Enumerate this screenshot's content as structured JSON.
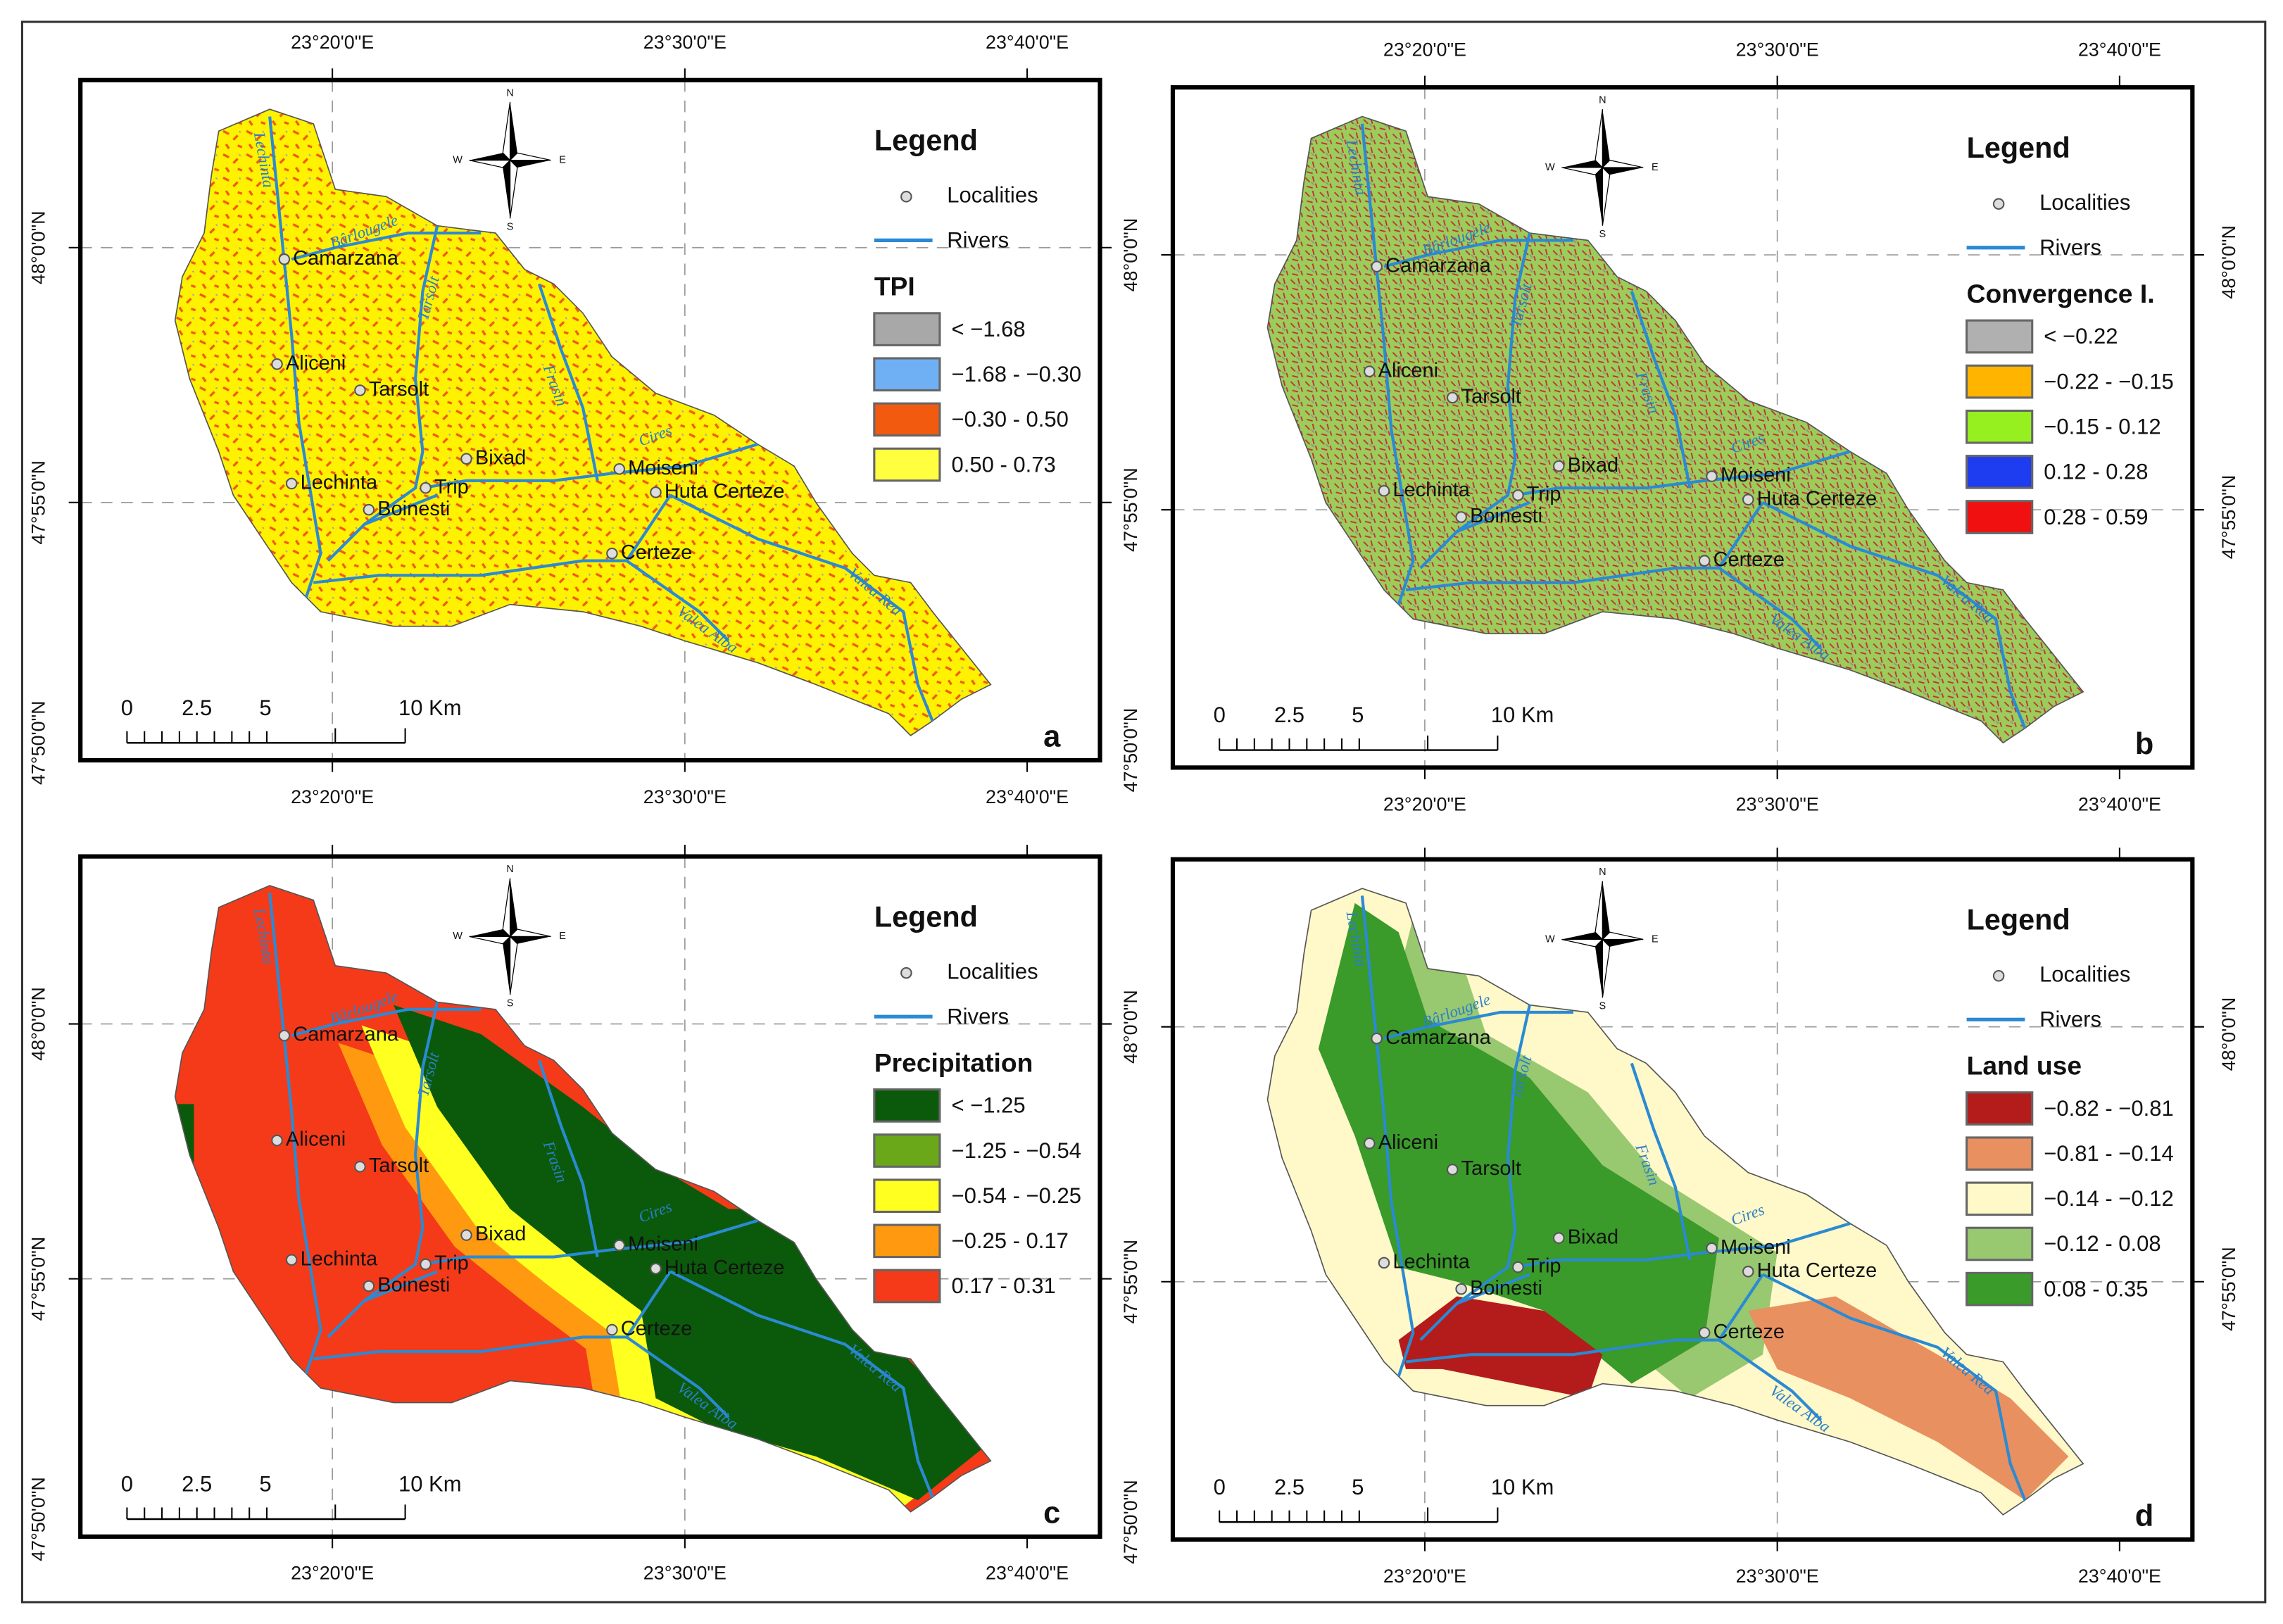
{
  "legend_title": "Legend",
  "localities_label": "Localities",
  "rivers_label": "Rivers",
  "compass": {
    "n": "N",
    "e": "E",
    "s": "S",
    "w": "W"
  },
  "scale": [
    "0",
    "2.5",
    "5",
    "10 Km"
  ],
  "localities": [
    "Camarzana",
    "Aliceni",
    "Tarsolt",
    "Bixad",
    "Lechinta",
    "Trip",
    "Boinesti",
    "Moiseni",
    "Huta Certeze",
    "Certeze"
  ],
  "rivers": [
    "Lechinta",
    "Bârlougele",
    "Tarsolt",
    "Frasin",
    "Cires",
    "Valea Rea",
    "Valea Alba"
  ],
  "panels": [
    {
      "letter": "a",
      "layer": "TPI",
      "fill": "tpi",
      "classes": [
        {
          "label": "< −1.68",
          "color": "#a8a8a8"
        },
        {
          "label": "−1.68 - −0.30",
          "color": "#6fb0f5"
        },
        {
          "label": "−0.30 - 0.50",
          "color": "#f25a10"
        },
        {
          "label": "0.50 - 0.73",
          "color": "#ffff40"
        }
      ],
      "top_labels": [
        "23°20'0\"E",
        "23°30'0\"E",
        "23°40'0\"E"
      ],
      "bottom_labels": [
        "23°20'0\"E",
        "23°30'0\"E",
        "23°40'0\"E"
      ],
      "left_labels": [
        "48°0'0\"N",
        "47°55'0\"N",
        "47°50'0\"N"
      ],
      "right_labels": []
    },
    {
      "letter": "b",
      "layer": "Convergence I.",
      "fill": "conv",
      "classes": [
        {
          "label": "< −0.22",
          "color": "#b0b0b0"
        },
        {
          "label": "−0.22 - −0.15",
          "color": "#ffb400"
        },
        {
          "label": "−0.15 - 0.12",
          "color": "#96f020"
        },
        {
          "label": "0.12 - 0.28",
          "color": "#1e3cf0"
        },
        {
          "label": "0.28 - 0.59",
          "color": "#f01010"
        }
      ],
      "top_labels": [
        "23°20'0\"E",
        "23°30'0\"E",
        "23°40'0\"E"
      ],
      "bottom_labels": [
        "23°20'0\"E",
        "23°30'0\"E",
        "23°40'0\"E"
      ],
      "left_labels": [
        "48°0'0\"N",
        "47°55'0\"N",
        "47°50'0\"N"
      ],
      "right_labels": [
        "48°0'0\"N",
        "47°55'0\"N"
      ]
    },
    {
      "letter": "c",
      "layer": "Precipitation",
      "fill": "prec",
      "classes": [
        {
          "label": "< −1.25",
          "color": "#0b5a0b"
        },
        {
          "label": "−1.25 - −0.54",
          "color": "#6aa81a"
        },
        {
          "label": "−0.54 - −0.25",
          "color": "#ffff20"
        },
        {
          "label": "−0.25 - 0.17",
          "color": "#ff9a10"
        },
        {
          "label": "0.17 - 0.31",
          "color": "#f53a1a"
        }
      ],
      "top_labels": [],
      "bottom_labels": [
        "23°20'0\"E",
        "23°30'0\"E",
        "23°40'0\"E"
      ],
      "left_labels": [
        "48°0'0\"N",
        "47°55'0\"N",
        "47°50'0\"N"
      ],
      "right_labels": []
    },
    {
      "letter": "d",
      "layer": "Land use",
      "fill": "land",
      "classes": [
        {
          "label": "−0.82 - −0.81",
          "color": "#b41c1c"
        },
        {
          "label": "−0.81 - −0.14",
          "color": "#e89060"
        },
        {
          "label": "−0.14 - −0.12",
          "color": "#fff8c8"
        },
        {
          "label": "−0.12 - 0.08",
          "color": "#98c870"
        },
        {
          "label": "0.08 - 0.35",
          "color": "#3a9a2a"
        }
      ],
      "top_labels": [],
      "bottom_labels": [
        "23°20'0\"E",
        "23°30'0\"E",
        "23°40'0\"E"
      ],
      "left_labels": [
        "48°0'0\"N",
        "47°55'0\"N",
        "47°50'0\"N"
      ],
      "right_labels": [
        "48°0'0\"N",
        "47°55'0\"N"
      ]
    }
  ]
}
